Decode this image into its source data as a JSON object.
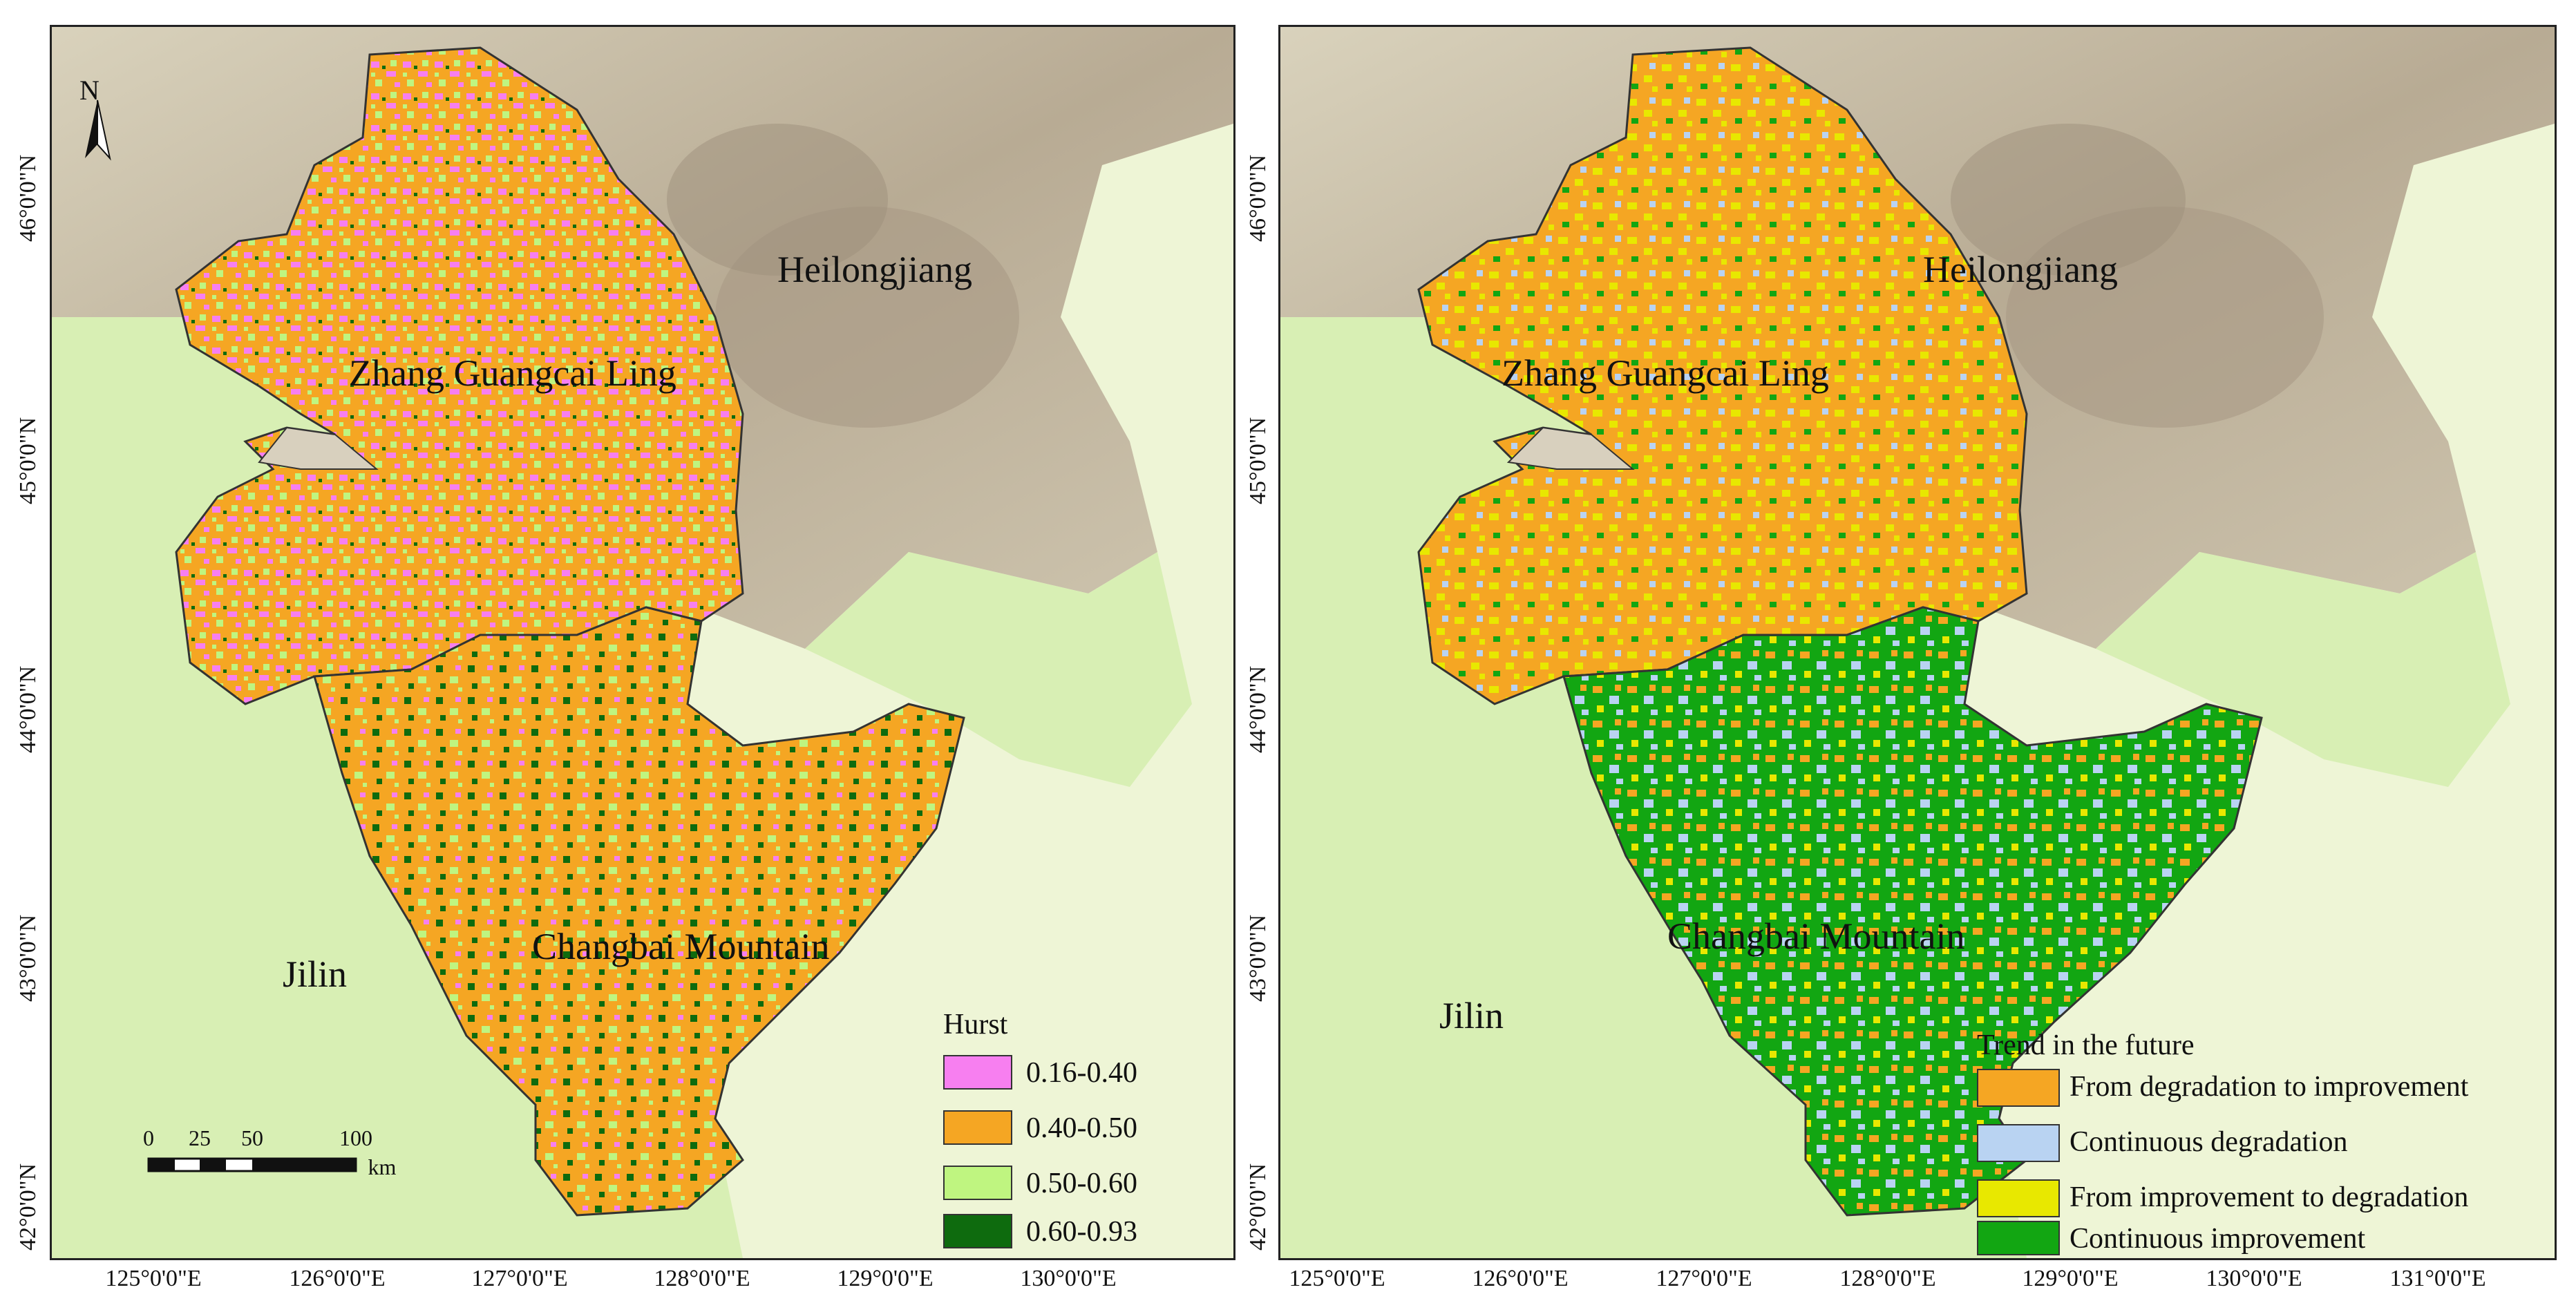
{
  "map": {
    "colors": {
      "background_lowland": "#eef5d6",
      "jilin_plain": "#d8efb4",
      "heilongjiang_relief": "#c9bfa8",
      "relief_dark": "#a89a86",
      "study_area_base": "#f5a623",
      "outline": "#333333"
    },
    "left_panel": {
      "north_arrow_label": "N",
      "regions": {
        "heilongjiang": "Heilongjiang",
        "zhang": "Zhang Guangcai Ling",
        "changbai": "Changbai Mountain",
        "jilin": "Jilin"
      },
      "x_ticks": [
        "125°0'0\"E",
        "126°0'0\"E",
        "127°0'0\"E",
        "128°0'0\"E",
        "129°0'0\"E",
        "130°0'0\"E"
      ],
      "y_ticks": [
        "46°0'0\"N",
        "45°0'0\"N",
        "44°0'0\"N",
        "43°0'0\"N",
        "42°0'0\"N"
      ],
      "legend": {
        "title": "Hurst",
        "items": [
          {
            "label": "0.16-0.40",
            "color": "#f77ff0"
          },
          {
            "label": "0.40-0.50",
            "color": "#f5a623"
          },
          {
            "label": "0.50-0.60",
            "color": "#bff580"
          },
          {
            "label": "0.60-0.93",
            "color": "#0e6b0e"
          }
        ]
      },
      "scale_bar": {
        "labels": [
          "0",
          "25",
          "50",
          "100"
        ],
        "unit": "km"
      }
    },
    "right_panel": {
      "regions": {
        "heilongjiang": "Heilongjiang",
        "zhang": "Zhang Guangcai Ling",
        "changbai": "Changbai Mountain",
        "jilin": "Jilin"
      },
      "x_ticks": [
        "125°0'0\"E",
        "126°0'0\"E",
        "127°0'0\"E",
        "128°0'0\"E",
        "129°0'0\"E",
        "130°0'0\"E",
        "131°0'0\"E"
      ],
      "y_ticks": [
        "46°0'0\"N",
        "45°0'0\"N",
        "44°0'0\"N",
        "43°0'0\"N",
        "42°0'0\"N"
      ],
      "legend": {
        "title": "Trend in the future",
        "items": [
          {
            "label": "From degradation to improvement",
            "color": "#f5a623"
          },
          {
            "label": "Continuous degradation",
            "color": "#b9d3f2"
          },
          {
            "label": "From improvement to degradation",
            "color": "#e8e800"
          },
          {
            "label": "Continuous improvement",
            "color": "#12a612"
          }
        ]
      }
    }
  }
}
